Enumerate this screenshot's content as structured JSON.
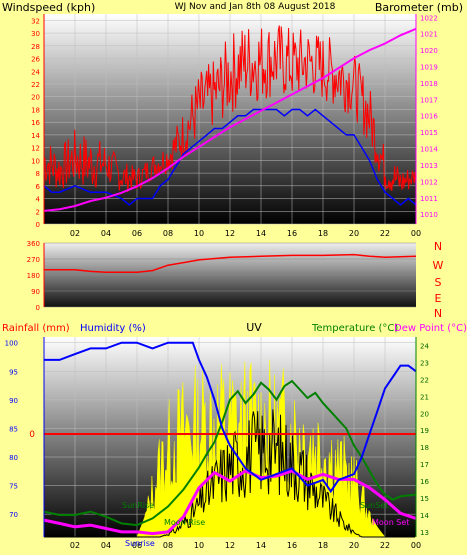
{
  "colors": {
    "background": "#ffff99",
    "wind_gust": "#ff0000",
    "wind_avg": "#0000ff",
    "barometer": "#ff00ff",
    "rain": "#ff0000",
    "humidity": "#0000ff",
    "uv": "#000000",
    "solar": "#ffff00",
    "temperature": "#008000",
    "dewpoint": "#ff00ff",
    "wind_label": "#ff0000",
    "title": "#ffff00"
  },
  "labels": {
    "windspeed": "Windspeed (kph)",
    "title": "WJ Nov and Jan 8th 08 August 2018",
    "barometer": "Barometer (mb)",
    "rainfall": "Rainfall (mm)",
    "humidity": "Humidity (%)",
    "uv": "UV",
    "temperature": "Temperature (°C)",
    "dewpoint": "Dew Point (°C)",
    "sunrise": "SunRise",
    "sunset": "SunSet",
    "moonrise": "Moon Rise",
    "moonset": "Moon Set",
    "sunrise_axis": "Sunrise",
    "compass": [
      "N",
      "W",
      "S",
      "E",
      "N"
    ]
  },
  "chart_data": [
    {
      "type": "line",
      "name": "wind-barometer",
      "x_ticks": [
        "02",
        "04",
        "06",
        "08",
        "10",
        "12",
        "14",
        "16",
        "18",
        "20",
        "22",
        "00"
      ],
      "ylim_left": [
        0,
        33
      ],
      "ylim_right": [
        1009.4,
        1022.2
      ],
      "y_ticks_left": [
        "0",
        "2",
        "4",
        "6",
        "8",
        "10",
        "12",
        "14",
        "16",
        "18",
        "20",
        "22",
        "24",
        "26",
        "28",
        "30",
        "32"
      ],
      "y_ticks_right": [
        "1010",
        "1011",
        "1012",
        "1013",
        "1014",
        "1015",
        "1016",
        "1017",
        "1018",
        "1019",
        "1020",
        "1021",
        "1022"
      ],
      "series": {
        "gust_low": [
          [
            0,
            6
          ],
          [
            1,
            5
          ],
          [
            2,
            6
          ],
          [
            3,
            5
          ],
          [
            4,
            6
          ],
          [
            5,
            5
          ],
          [
            6,
            5
          ],
          [
            7,
            7
          ],
          [
            8,
            8
          ],
          [
            9,
            10
          ],
          [
            10,
            13
          ],
          [
            11,
            15
          ],
          [
            12,
            17
          ],
          [
            13,
            19
          ],
          [
            14,
            19
          ],
          [
            15,
            20
          ],
          [
            16,
            19
          ],
          [
            17,
            20
          ],
          [
            18,
            19
          ],
          [
            19,
            18
          ],
          [
            20,
            17
          ],
          [
            21,
            12
          ],
          [
            22,
            5
          ],
          [
            23,
            4
          ],
          [
            24,
            6
          ]
        ],
        "gust_high": [
          [
            0,
            14
          ],
          [
            1,
            12
          ],
          [
            2,
            15
          ],
          [
            3,
            14
          ],
          [
            4,
            13
          ],
          [
            5,
            10
          ],
          [
            6,
            9
          ],
          [
            7,
            11
          ],
          [
            8,
            13
          ],
          [
            9,
            18
          ],
          [
            10,
            24
          ],
          [
            11,
            26
          ],
          [
            12,
            30
          ],
          [
            13,
            32
          ],
          [
            14,
            32
          ],
          [
            15,
            32
          ],
          [
            16,
            31
          ],
          [
            17,
            31
          ],
          [
            18,
            30
          ],
          [
            19,
            29
          ],
          [
            20,
            27
          ],
          [
            21,
            22
          ],
          [
            22,
            12
          ],
          [
            23,
            9
          ],
          [
            24,
            9
          ]
        ],
        "avg": [
          [
            0,
            6
          ],
          [
            0.5,
            5
          ],
          [
            1,
            5
          ],
          [
            2,
            6
          ],
          [
            3,
            5
          ],
          [
            4,
            5
          ],
          [
            5,
            4
          ],
          [
            5.5,
            3
          ],
          [
            6,
            4
          ],
          [
            6.5,
            4
          ],
          [
            7,
            4
          ],
          [
            7.5,
            6
          ],
          [
            8,
            7
          ],
          [
            8.5,
            9
          ],
          [
            9,
            11
          ],
          [
            9.5,
            12
          ],
          [
            10,
            13
          ],
          [
            10.5,
            14
          ],
          [
            11,
            15
          ],
          [
            11.5,
            15
          ],
          [
            12,
            16
          ],
          [
            12.5,
            17
          ],
          [
            13,
            17
          ],
          [
            13.5,
            18
          ],
          [
            14,
            18
          ],
          [
            14.5,
            18
          ],
          [
            15,
            18
          ],
          [
            15.5,
            17
          ],
          [
            16,
            18
          ],
          [
            16.5,
            18
          ],
          [
            17,
            17
          ],
          [
            17.5,
            18
          ],
          [
            18,
            17
          ],
          [
            18.5,
            16
          ],
          [
            19,
            15
          ],
          [
            19.5,
            14
          ],
          [
            20,
            14
          ],
          [
            20.5,
            12
          ],
          [
            21,
            10
          ],
          [
            21.5,
            7
          ],
          [
            22,
            5
          ],
          [
            22.5,
            4
          ],
          [
            23,
            3
          ],
          [
            23.5,
            4
          ],
          [
            24,
            3
          ]
        ],
        "barometer": [
          [
            0,
            1010.2
          ],
          [
            1,
            1010.3
          ],
          [
            2,
            1010.5
          ],
          [
            3,
            1010.8
          ],
          [
            4,
            1011.0
          ],
          [
            5,
            1011.3
          ],
          [
            6,
            1011.7
          ],
          [
            7,
            1012.2
          ],
          [
            8,
            1012.8
          ],
          [
            9,
            1013.5
          ],
          [
            10,
            1014.1
          ],
          [
            11,
            1014.7
          ],
          [
            12,
            1015.3
          ],
          [
            13,
            1015.8
          ],
          [
            14,
            1016.3
          ],
          [
            15,
            1016.8
          ],
          [
            16,
            1017.3
          ],
          [
            17,
            1017.8
          ],
          [
            18,
            1018.3
          ],
          [
            19,
            1018.9
          ],
          [
            20,
            1019.5
          ],
          [
            21,
            1020.0
          ],
          [
            22,
            1020.4
          ],
          [
            23,
            1020.9
          ],
          [
            24,
            1021.3
          ]
        ]
      }
    },
    {
      "type": "line",
      "name": "wind-direction",
      "ylim": [
        0,
        360
      ],
      "y_ticks": [
        "0",
        "90",
        "180",
        "270",
        "360"
      ],
      "series": {
        "direction": [
          [
            0,
            210
          ],
          [
            2,
            210
          ],
          [
            3,
            200
          ],
          [
            4,
            195
          ],
          [
            5,
            195
          ],
          [
            6,
            195
          ],
          [
            7,
            205
          ],
          [
            8,
            235
          ],
          [
            9,
            250
          ],
          [
            10,
            265
          ],
          [
            12,
            280
          ],
          [
            14,
            285
          ],
          [
            16,
            290
          ],
          [
            18,
            290
          ],
          [
            20,
            295
          ],
          [
            21,
            285
          ],
          [
            22,
            280
          ],
          [
            24,
            285
          ]
        ]
      }
    },
    {
      "type": "line",
      "name": "rain-humidity-uv-temperature",
      "y_ticks_humidity": [
        "70",
        "75",
        "80",
        "85",
        "90",
        "95",
        "100"
      ],
      "ylim_humidity": [
        66,
        101
      ],
      "rain_tick": "0",
      "y_ticks_temp": [
        "13",
        "14",
        "15",
        "16",
        "17",
        "18",
        "19",
        "20",
        "21",
        "22",
        "23",
        "24"
      ],
      "ylim_temp": [
        12.7,
        24.5
      ],
      "series": {
        "humidity": [
          [
            0,
            97
          ],
          [
            1,
            97
          ],
          [
            2,
            98
          ],
          [
            3,
            99
          ],
          [
            4,
            99
          ],
          [
            5,
            100
          ],
          [
            6,
            100
          ],
          [
            7,
            99
          ],
          [
            8,
            100
          ],
          [
            9,
            100
          ],
          [
            9.6,
            100
          ],
          [
            10,
            97
          ],
          [
            10.5,
            94
          ],
          [
            11,
            90
          ],
          [
            11.5,
            85
          ],
          [
            12,
            82
          ],
          [
            12.5,
            80
          ],
          [
            13,
            78
          ],
          [
            13.5,
            77
          ],
          [
            14,
            76
          ],
          [
            15,
            77
          ],
          [
            16,
            78
          ],
          [
            17,
            75
          ],
          [
            18,
            76
          ],
          [
            18.5,
            74
          ],
          [
            19,
            76
          ],
          [
            20,
            77
          ],
          [
            20.5,
            80
          ],
          [
            21,
            84
          ],
          [
            21.5,
            88
          ],
          [
            22,
            92
          ],
          [
            22.5,
            94
          ],
          [
            23,
            96
          ],
          [
            23.5,
            96
          ],
          [
            24,
            95
          ]
        ],
        "temperature": [
          [
            0,
            14.2
          ],
          [
            1,
            14.0
          ],
          [
            2,
            14.0
          ],
          [
            3,
            14.2
          ],
          [
            4,
            13.9
          ],
          [
            5,
            13.5
          ],
          [
            6,
            13.4
          ],
          [
            7,
            13.8
          ],
          [
            8,
            14.5
          ],
          [
            9,
            15.5
          ],
          [
            10,
            16.8
          ],
          [
            10.5,
            17.6
          ],
          [
            11,
            18.3
          ],
          [
            11.5,
            19.5
          ],
          [
            12,
            20.8
          ],
          [
            12.5,
            21.3
          ],
          [
            13,
            20.6
          ],
          [
            13.5,
            21.1
          ],
          [
            14,
            21.8
          ],
          [
            14.5,
            21.4
          ],
          [
            15,
            20.8
          ],
          [
            15.5,
            21.6
          ],
          [
            16,
            21.9
          ],
          [
            16.5,
            21.4
          ],
          [
            17,
            20.9
          ],
          [
            17.5,
            21.2
          ],
          [
            18,
            20.6
          ],
          [
            18.5,
            20.1
          ],
          [
            19,
            19.6
          ],
          [
            19.5,
            19.1
          ],
          [
            20,
            18.1
          ],
          [
            20.5,
            17.4
          ],
          [
            21,
            16.6
          ],
          [
            21.5,
            15.8
          ],
          [
            22,
            15.2
          ],
          [
            22.5,
            14.9
          ],
          [
            23,
            15.1
          ],
          [
            24,
            15.2
          ]
        ],
        "dewpoint": [
          [
            0,
            13.7
          ],
          [
            1,
            13.5
          ],
          [
            2,
            13.3
          ],
          [
            3,
            13.4
          ],
          [
            4,
            13.2
          ],
          [
            5,
            13.0
          ],
          [
            6,
            13.0
          ],
          [
            7,
            12.9
          ],
          [
            8,
            13.0
          ],
          [
            9,
            13.9
          ],
          [
            10,
            15.6
          ],
          [
            11,
            16.5
          ],
          [
            12,
            16.0
          ],
          [
            13,
            16.6
          ],
          [
            14,
            16.2
          ],
          [
            15,
            16.3
          ],
          [
            16,
            16.6
          ],
          [
            17,
            16.1
          ],
          [
            18,
            16.4
          ],
          [
            19,
            16.1
          ],
          [
            20,
            16.1
          ],
          [
            21,
            15.6
          ],
          [
            22,
            14.9
          ],
          [
            23,
            14.1
          ],
          [
            24,
            13.8
          ]
        ],
        "uv": [
          [
            0,
            0
          ],
          [
            7.5,
            0
          ],
          [
            8.5,
            0.3
          ],
          [
            9.5,
            1.0
          ],
          [
            10.5,
            2.0
          ],
          [
            11.5,
            3.0
          ],
          [
            12.5,
            3.6
          ],
          [
            13.5,
            4.0
          ],
          [
            14.5,
            4.2
          ],
          [
            15.5,
            3.8
          ],
          [
            16.5,
            3.2
          ],
          [
            17.5,
            2.2
          ],
          [
            18.5,
            1.3
          ],
          [
            19.5,
            0.5
          ],
          [
            20.5,
            0
          ],
          [
            24,
            0
          ]
        ],
        "solar": [
          [
            0,
            0
          ],
          [
            6,
            0
          ],
          [
            6.5,
            0.1
          ],
          [
            7,
            0.28
          ],
          [
            7.5,
            0.45
          ],
          [
            8,
            0.55
          ],
          [
            8.5,
            0.62
          ],
          [
            9,
            0.66
          ],
          [
            9.5,
            0.7
          ],
          [
            10,
            0.7
          ],
          [
            10.5,
            0.72
          ],
          [
            11,
            0.72
          ],
          [
            11.5,
            0.74
          ],
          [
            12,
            0.72
          ],
          [
            12.5,
            0.72
          ],
          [
            13,
            0.74
          ],
          [
            13.5,
            0.72
          ],
          [
            14,
            0.7
          ],
          [
            14.5,
            0.72
          ],
          [
            15,
            0.68
          ],
          [
            15.5,
            0.7
          ],
          [
            16,
            0.66
          ],
          [
            16.5,
            0.64
          ],
          [
            17,
            0.6
          ],
          [
            17.5,
            0.58
          ],
          [
            18,
            0.55
          ],
          [
            18.5,
            0.5
          ],
          [
            19,
            0.45
          ],
          [
            19.5,
            0.4
          ],
          [
            20,
            0.35
          ],
          [
            20.5,
            0.25
          ],
          [
            21,
            0.12
          ],
          [
            21.5,
            0.05
          ],
          [
            22,
            0
          ],
          [
            24,
            0
          ]
        ]
      }
    }
  ]
}
